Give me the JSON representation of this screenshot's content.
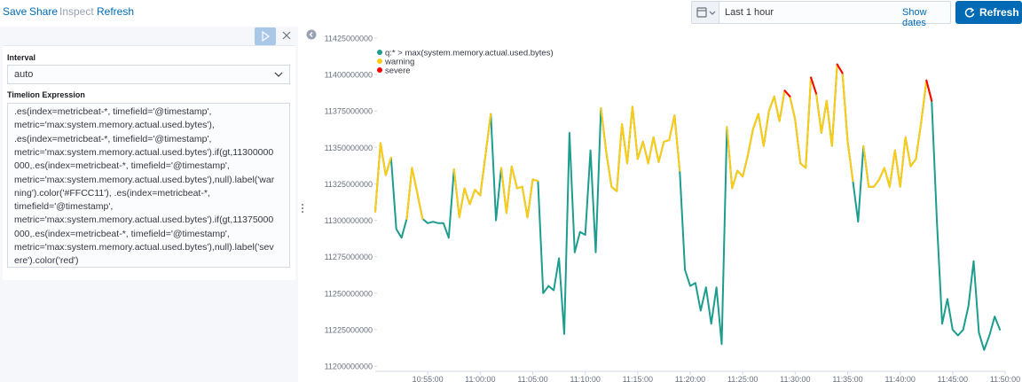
{
  "nav": {
    "items": [
      "Save",
      "Share",
      "Inspect",
      "Refresh"
    ]
  },
  "date_picker": {
    "range": "Last 1 hour",
    "show_dates": "Show dates",
    "refresh": "Refresh"
  },
  "editor": {
    "interval_label": "Interval",
    "interval_value": "auto",
    "expression_label": "Timelion Expression",
    "expression_lines": [
      ".es(index=metricbeat-*, timefield='@timestamp',",
      "metric='max:system.memory.actual.used.bytes'),",
      ".es(index=metricbeat-*, timefield='@timestamp',",
      "metric='max:system.memory.actual.used.bytes').if(gt,11300000",
      "000,.es(index=metricbeat-*, timefield='@timestamp',",
      "metric='max:system.memory.actual.used.bytes'),null).label('war",
      "ning').color('#FFCC11'), .es(index=metricbeat-*,",
      "timefield='@timestamp',",
      "metric='max:system.memory.actual.used.bytes').if(gt,11375000",
      "000,.es(index=metricbeat-*, timefield='@timestamp',",
      "metric='max:system.memory.actual.used.bytes'),null).label('sev",
      "ere').color('red')"
    ]
  },
  "chart_data": {
    "type": "line",
    "legend": "upper left",
    "x": [
      "10:50:00",
      "10:50:30",
      "10:51:00",
      "10:51:30",
      "10:52:00",
      "10:52:30",
      "10:53:00",
      "10:53:30",
      "10:54:00",
      "10:54:30",
      "10:55:00",
      "10:55:30",
      "10:56:00",
      "10:56:30",
      "10:57:00",
      "10:57:30",
      "10:58:00",
      "10:58:30",
      "10:59:00",
      "10:59:30",
      "11:00:00",
      "11:00:30",
      "11:01:00",
      "11:01:30",
      "11:02:00",
      "11:02:30",
      "11:03:00",
      "11:03:30",
      "11:04:00",
      "11:04:30",
      "11:05:00",
      "11:05:30",
      "11:06:00",
      "11:06:30",
      "11:07:00",
      "11:07:30",
      "11:08:00",
      "11:08:30",
      "11:09:00",
      "11:09:30",
      "11:10:00",
      "11:10:30",
      "11:11:00",
      "11:11:30",
      "11:12:00",
      "11:12:30",
      "11:13:00",
      "11:13:30",
      "11:14:00",
      "11:14:30",
      "11:15:00",
      "11:15:30",
      "11:16:00",
      "11:16:30",
      "11:17:00",
      "11:17:30",
      "11:18:00",
      "11:18:30",
      "11:19:00",
      "11:19:30",
      "11:20:00",
      "11:20:30",
      "11:21:00",
      "11:21:30",
      "11:22:00",
      "11:22:30",
      "11:23:00",
      "11:23:30",
      "11:24:00",
      "11:24:30",
      "11:25:00",
      "11:25:30",
      "11:26:00",
      "11:26:30",
      "11:27:00",
      "11:27:30",
      "11:28:00",
      "11:28:30",
      "11:29:00",
      "11:29:30",
      "11:30:00",
      "11:30:30",
      "11:31:00",
      "11:31:30",
      "11:32:00",
      "11:32:30",
      "11:33:00",
      "11:33:30",
      "11:34:00",
      "11:34:30",
      "11:35:00",
      "11:35:30",
      "11:36:00",
      "11:36:30",
      "11:37:00",
      "11:37:30",
      "11:38:00",
      "11:38:30",
      "11:39:00",
      "11:39:30",
      "11:40:00",
      "11:40:30",
      "11:41:00",
      "11:41:30",
      "11:42:00",
      "11:42:30",
      "11:43:00",
      "11:43:30",
      "11:44:00",
      "11:44:30",
      "11:45:00",
      "11:45:30",
      "11:46:00",
      "11:46:30",
      "11:47:00",
      "11:47:30",
      "11:48:00",
      "11:48:30",
      "11:49:00",
      "11:49:30"
    ],
    "xlim": [
      "10:50:00",
      "11:50:00"
    ],
    "xticks": [
      "10:55:00",
      "11:00:00",
      "11:05:00",
      "11:10:00",
      "11:15:00",
      "11:20:00",
      "11:25:00",
      "11:30:00",
      "11:35:00",
      "11:40:00",
      "11:45:00",
      "11:50:00"
    ],
    "ylim": [
      11200000000,
      11425000000
    ],
    "yticks": [
      11200000000,
      11225000000,
      11250000000,
      11275000000,
      11300000000,
      11325000000,
      11350000000,
      11375000000,
      11400000000,
      11425000000
    ],
    "series": [
      {
        "name": "q:* > max(system.memory.actual.used.bytes)",
        "color": "#1c9d8e",
        "values": [
          11306000000,
          11353000000,
          11331000000,
          11343000000,
          11294000000,
          11288000000,
          11301000000,
          11336000000,
          11319000000,
          11301000000,
          11298000000,
          11299000000,
          11298000000,
          11298000000,
          11288000000,
          11335000000,
          11302000000,
          11322000000,
          11311000000,
          11321000000,
          11317000000,
          11345000000,
          11373000000,
          11300000000,
          11336000000,
          11305000000,
          11337000000,
          11322000000,
          11323000000,
          11302000000,
          11328000000,
          11327000000,
          11250000000,
          11255000000,
          11252000000,
          11274000000,
          11222000000,
          11360000000,
          11278000000,
          11292000000,
          11290000000,
          11348000000,
          11278000000,
          11377000000,
          11347000000,
          11323000000,
          11320000000,
          11366000000,
          11339000000,
          11378000000,
          11342000000,
          11354000000,
          11339000000,
          11357000000,
          11340000000,
          11354000000,
          11355000000,
          11372000000,
          11334000000,
          11266000000,
          11255000000,
          11257000000,
          11238000000,
          11254000000,
          11229000000,
          11254000000,
          11215000000,
          11364000000,
          11322000000,
          11334000000,
          11330000000,
          11345000000,
          11363000000,
          11373000000,
          11351000000,
          11375000000,
          11385000000,
          11368000000,
          11389000000,
          11385000000,
          11369000000,
          11339000000,
          11336000000,
          11398000000,
          11387000000,
          11360000000,
          11382000000,
          11351000000,
          11407000000,
          11401000000,
          11354000000,
          11327000000,
          11299000000,
          11351000000,
          11323000000,
          11323000000,
          11328000000,
          11336000000,
          11323000000,
          11348000000,
          11323000000,
          11357000000,
          11337000000,
          11342000000,
          11367000000,
          11396000000,
          11382000000,
          11299000000,
          11229000000,
          11246000000,
          11225000000,
          11221000000,
          11225000000,
          11241000000,
          11272000000,
          11223000000,
          11211000000,
          11221000000,
          11234000000,
          11225000000
        ]
      },
      {
        "name": "warning",
        "color": "#FFCC11",
        "values": [
          11306000000,
          11353000000,
          11331000000,
          11343000000,
          null,
          null,
          11301000000,
          11336000000,
          11319000000,
          11301000000,
          null,
          null,
          null,
          null,
          null,
          11335000000,
          11302000000,
          11322000000,
          11311000000,
          11321000000,
          11317000000,
          11345000000,
          11373000000,
          null,
          11336000000,
          11305000000,
          11337000000,
          11322000000,
          11323000000,
          11302000000,
          11328000000,
          11327000000,
          null,
          null,
          null,
          null,
          null,
          11360000000,
          null,
          null,
          null,
          11348000000,
          null,
          11377000000,
          11347000000,
          11323000000,
          11320000000,
          11366000000,
          11339000000,
          11378000000,
          11342000000,
          11354000000,
          11339000000,
          11357000000,
          11340000000,
          11354000000,
          11355000000,
          11372000000,
          11334000000,
          null,
          null,
          null,
          null,
          null,
          null,
          null,
          null,
          11364000000,
          11322000000,
          11334000000,
          11330000000,
          11345000000,
          11363000000,
          11373000000,
          11351000000,
          11375000000,
          11385000000,
          11368000000,
          11389000000,
          11385000000,
          11369000000,
          11339000000,
          11336000000,
          11398000000,
          11387000000,
          11360000000,
          11382000000,
          11351000000,
          11407000000,
          11401000000,
          11354000000,
          11327000000,
          null,
          11351000000,
          11323000000,
          11323000000,
          11328000000,
          11336000000,
          11323000000,
          11348000000,
          11323000000,
          11357000000,
          11337000000,
          11342000000,
          11367000000,
          11396000000,
          11382000000,
          null,
          null,
          null,
          null,
          null,
          null,
          null,
          null,
          null,
          null,
          null,
          null,
          null
        ]
      },
      {
        "name": "severe",
        "color": "red",
        "values": [
          null,
          null,
          null,
          null,
          null,
          null,
          null,
          null,
          null,
          null,
          null,
          null,
          null,
          null,
          null,
          null,
          null,
          null,
          null,
          null,
          null,
          null,
          null,
          null,
          null,
          null,
          null,
          null,
          null,
          null,
          null,
          null,
          null,
          null,
          null,
          null,
          null,
          null,
          null,
          null,
          null,
          null,
          null,
          11377000000,
          null,
          null,
          null,
          null,
          null,
          11378000000,
          null,
          null,
          null,
          null,
          null,
          null,
          null,
          null,
          null,
          null,
          null,
          null,
          null,
          null,
          null,
          null,
          null,
          null,
          null,
          null,
          null,
          null,
          null,
          null,
          null,
          null,
          11385000000,
          null,
          11389000000,
          11385000000,
          null,
          null,
          null,
          11398000000,
          11387000000,
          null,
          11382000000,
          null,
          11407000000,
          11401000000,
          null,
          null,
          null,
          null,
          null,
          null,
          null,
          null,
          null,
          null,
          null,
          null,
          null,
          null,
          null,
          11396000000,
          11382000000,
          null,
          null,
          null,
          null,
          null,
          null,
          null,
          null,
          null,
          null,
          null,
          null,
          null
        ]
      }
    ]
  }
}
